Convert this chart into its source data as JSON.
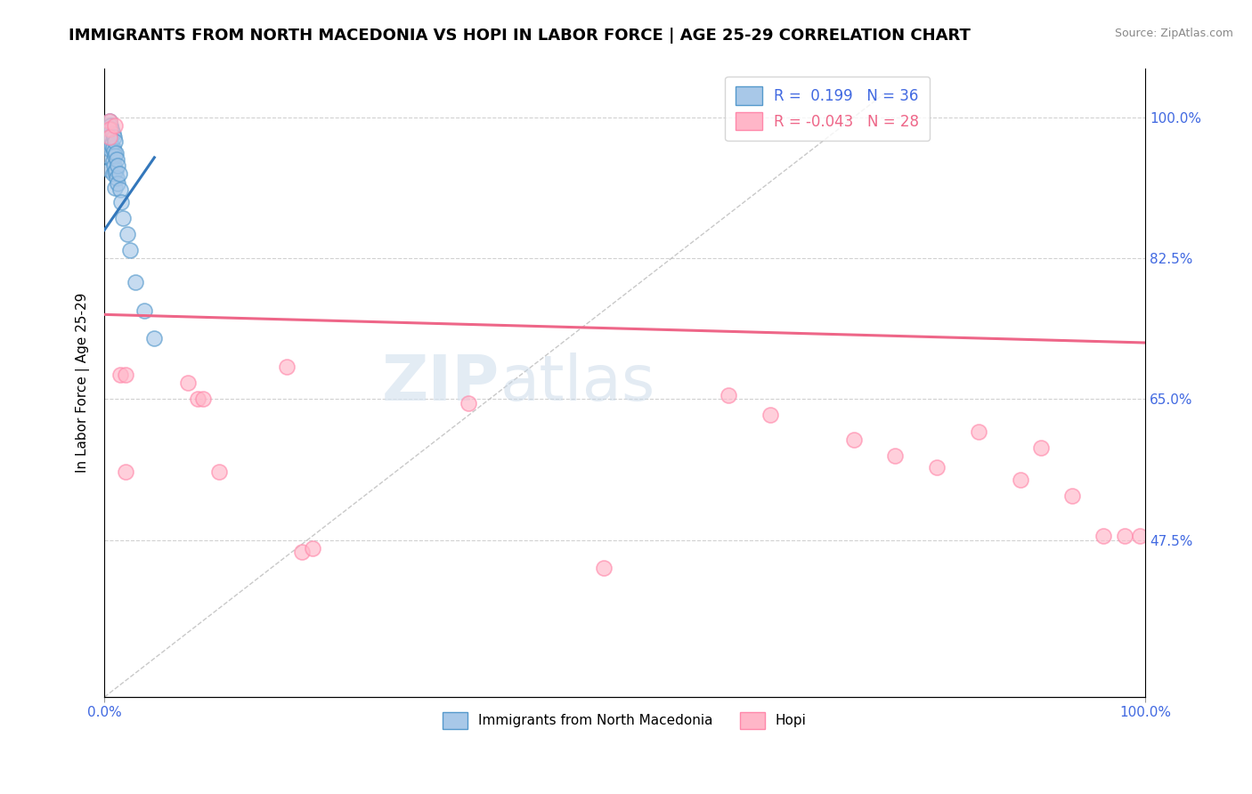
{
  "title": "IMMIGRANTS FROM NORTH MACEDONIA VS HOPI IN LABOR FORCE | AGE 25-29 CORRELATION CHART",
  "source": "Source: ZipAtlas.com",
  "ylabel": "In Labor Force | Age 25-29",
  "xlim": [
    0.0,
    1.0
  ],
  "ylim": [
    0.28,
    1.06
  ],
  "xtick_labels": [
    "0.0%",
    "100.0%"
  ],
  "xtick_positions": [
    0.0,
    1.0
  ],
  "ytick_labels": [
    "47.5%",
    "65.0%",
    "82.5%",
    "100.0%"
  ],
  "ytick_positions": [
    0.475,
    0.65,
    0.825,
    1.0
  ],
  "legend_r_blue": "0.199",
  "legend_n_blue": "36",
  "legend_r_pink": "-0.043",
  "legend_n_pink": "28",
  "blue_scatter_x": [
    0.005,
    0.005,
    0.005,
    0.005,
    0.005,
    0.006,
    0.006,
    0.006,
    0.007,
    0.007,
    0.008,
    0.008,
    0.008,
    0.008,
    0.009,
    0.009,
    0.009,
    0.01,
    0.01,
    0.01,
    0.01,
    0.011,
    0.011,
    0.012,
    0.012,
    0.013,
    0.013,
    0.014,
    0.015,
    0.016,
    0.018,
    0.022,
    0.025,
    0.03,
    0.038,
    0.048
  ],
  "blue_scatter_y": [
    0.995,
    0.98,
    0.965,
    0.95,
    0.935,
    0.99,
    0.975,
    0.96,
    0.985,
    0.965,
    0.98,
    0.962,
    0.945,
    0.93,
    0.975,
    0.958,
    0.94,
    0.97,
    0.952,
    0.932,
    0.912,
    0.955,
    0.935,
    0.948,
    0.925,
    0.94,
    0.918,
    0.93,
    0.91,
    0.895,
    0.875,
    0.855,
    0.835,
    0.795,
    0.76,
    0.725
  ],
  "pink_scatter_x": [
    0.005,
    0.005,
    0.005,
    0.01,
    0.015,
    0.02,
    0.02,
    0.08,
    0.09,
    0.095,
    0.11,
    0.175,
    0.19,
    0.2,
    0.35,
    0.48,
    0.6,
    0.64,
    0.72,
    0.76,
    0.8,
    0.84,
    0.88,
    0.9,
    0.93,
    0.96,
    0.98,
    0.995
  ],
  "pink_scatter_y": [
    0.995,
    0.985,
    0.975,
    0.99,
    0.68,
    0.68,
    0.56,
    0.67,
    0.65,
    0.65,
    0.56,
    0.69,
    0.46,
    0.465,
    0.645,
    0.44,
    0.655,
    0.63,
    0.6,
    0.58,
    0.565,
    0.61,
    0.55,
    0.59,
    0.53,
    0.48,
    0.48,
    0.48
  ],
  "blue_line_x": [
    0.0,
    0.048
  ],
  "blue_line_y": [
    0.86,
    0.95
  ],
  "pink_line_x": [
    0.0,
    1.0
  ],
  "pink_line_y": [
    0.755,
    0.72
  ],
  "ref_line_x": [
    0.0,
    0.75
  ],
  "ref_line_y": [
    0.28,
    1.03
  ],
  "blue_color": "#a8c8e8",
  "pink_color": "#ffb6c8",
  "blue_edge_color": "#5599cc",
  "pink_edge_color": "#ff88aa",
  "blue_line_color": "#3377bb",
  "pink_line_color": "#ee6688",
  "ref_line_color": "#bbbbbb",
  "watermark_zip": "ZIP",
  "watermark_atlas": "atlas",
  "background_color": "#ffffff",
  "title_fontsize": 13,
  "label_fontsize": 11,
  "tick_fontsize": 11,
  "right_tick_color": "#4169e1",
  "bottom_tick_color": "#4169e1"
}
